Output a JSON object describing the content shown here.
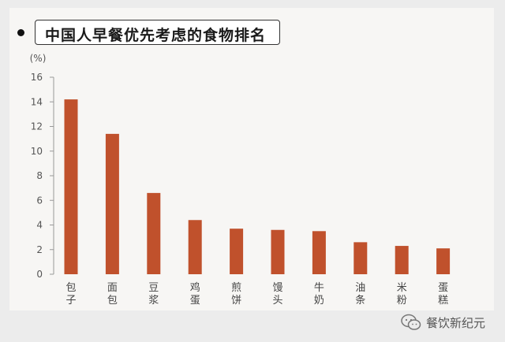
{
  "title": "中国人早餐优先考虑的食物排名",
  "watermark": "餐饮新纪元",
  "chart_data": {
    "type": "bar",
    "title": "中国人早餐优先考虑的食物排名",
    "ylabel": "(%)",
    "xlabel": "",
    "ylim": [
      0,
      16
    ],
    "yticks": [
      0,
      2,
      4,
      6,
      8,
      10,
      12,
      14,
      16
    ],
    "grid": false,
    "legend": "none",
    "bar_color": "#c0512c",
    "categories": [
      "包子",
      "面包",
      "豆浆",
      "鸡蛋",
      "煎饼",
      "馒头",
      "牛奶",
      "油条",
      "米粉",
      "蛋糕"
    ],
    "values": [
      14.2,
      11.4,
      6.6,
      4.4,
      3.7,
      3.6,
      3.5,
      2.6,
      2.3,
      2.1
    ]
  }
}
